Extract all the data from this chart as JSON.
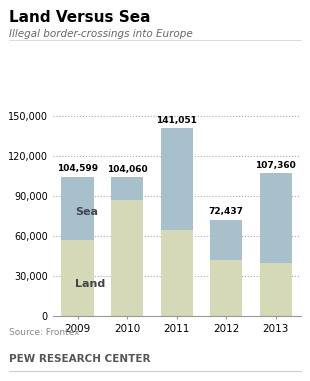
{
  "title": "Land Versus Sea",
  "subtitle": "Illegal border-crossings into Europe",
  "years": [
    "2009",
    "2010",
    "2011",
    "2012",
    "2013"
  ],
  "land": [
    57000,
    87000,
    65000,
    42000,
    40000
  ],
  "sea": [
    47599,
    17060,
    76051,
    30437,
    67360
  ],
  "totals": [
    104599,
    104060,
    141051,
    72437,
    107360
  ],
  "total_labels": [
    "104,599",
    "104,060",
    "141,051",
    "72,437",
    "107,360"
  ],
  "land_color": "#d5d9b8",
  "sea_color": "#a8bfcc",
  "ylim": [
    0,
    160000
  ],
  "yticks": [
    0,
    30000,
    60000,
    90000,
    120000,
    150000
  ],
  "ytick_labels": [
    "0",
    "30,000",
    "60,000",
    "90,000",
    "120,000",
    "150,000"
  ],
  "source_text": "Source: Frontex",
  "footer_text": "PEW RESEARCH CENTER",
  "land_label": "Land",
  "sea_label": "Sea",
  "bar_width": 0.65
}
